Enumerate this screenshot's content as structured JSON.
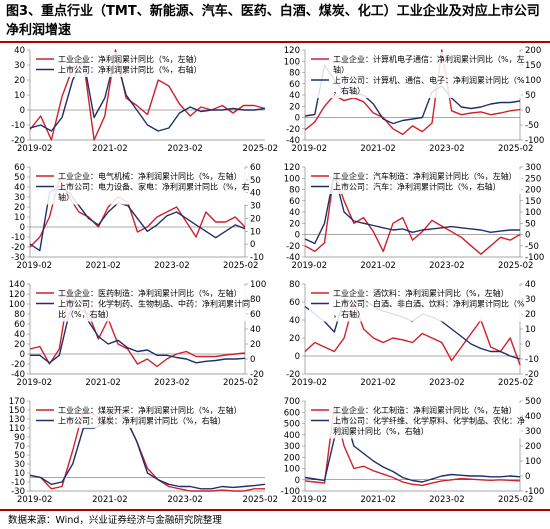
{
  "figure": {
    "title": "图3、重点行业（TMT、新能源、汽车、医药、白酒、煤炭、化工）工业企业及对应上市公司净利润增速",
    "source": "数据来源：Wind，兴业证券经济与金融研究院整理",
    "colors": {
      "industry": "#d0202a",
      "listed": "#1f2f6b",
      "divider": "#b00000"
    }
  },
  "chart_data": [
    {
      "type": "line",
      "title": "",
      "x_ticks": [
        "2019-02",
        "2021-02",
        "2023-02",
        "2025-02"
      ],
      "y_left": {
        "ticks": [
          -20,
          -10,
          0,
          10,
          20,
          30,
          40
        ],
        "lim": [
          -20,
          40
        ]
      },
      "y_right": null,
      "legend": [
        "工业企业：净利润累计同比（%，左轴）",
        "上市公司：净利润累计同比（%，右轴）"
      ],
      "series": [
        {
          "name": "工业企业：净利润累计同比（%，左轴）",
          "color": "#d0202a",
          "axis": "left",
          "values": [
            -13,
            -4,
            -20,
            9,
            28,
            33,
            -20,
            -4,
            40,
            8,
            3,
            -3,
            20,
            16,
            4,
            -4,
            2,
            0,
            3,
            -2,
            3,
            3,
            1
          ]
        },
        {
          "name": "上市公司：净利润累计同比（%，右轴）",
          "color": "#1f2f6b",
          "axis": "left",
          "values": [
            -12,
            -10,
            -14,
            -5,
            20,
            34,
            -5,
            8,
            36,
            10,
            0,
            -10,
            -14,
            -12,
            -2,
            2,
            -1,
            0,
            0,
            1,
            0,
            0,
            1
          ]
        }
      ]
    },
    {
      "type": "line",
      "title": "",
      "x_ticks": [
        "2019-02",
        "2021-02",
        "2023-02",
        "2025-02"
      ],
      "y_left": {
        "ticks": [
          -40,
          -20,
          0,
          20,
          40,
          60,
          80,
          100,
          120
        ],
        "lim": [
          -40,
          120
        ]
      },
      "y_right": {
        "ticks": [
          -100,
          -50,
          0,
          50,
          100,
          150,
          200
        ],
        "lim": [
          -100,
          200
        ]
      },
      "legend": [
        "工业企业：计算机电子通信：净利润累计同比（%，左轴）",
        "上市公司：计算机、通信、电子：净利润累计同比（%，右轴）"
      ],
      "series": [
        {
          "name": "工业企业：计算机电子通信：净利润累计同比（%，左轴）",
          "color": "#d0202a",
          "axis": "left",
          "values": [
            -22,
            -8,
            20,
            40,
            30,
            35,
            28,
            8,
            0,
            -20,
            -30,
            -15,
            -25,
            -10,
            120,
            12,
            5,
            8,
            10,
            5,
            8,
            12,
            14
          ]
        },
        {
          "name": "上市公司：计算机、通信、电子：净利润累计同比（%，右轴）",
          "color": "#1f2f6b",
          "axis": "right",
          "values": [
            -20,
            -15,
            150,
            100,
            60,
            55,
            50,
            20,
            -30,
            -45,
            -35,
            -30,
            -25,
            60,
            80,
            40,
            10,
            5,
            10,
            20,
            25,
            25,
            30
          ]
        }
      ]
    },
    {
      "type": "line",
      "title": "",
      "x_ticks": [
        "2019-02",
        "2021-02",
        "2023-02",
        "2025-02"
      ],
      "y_left": {
        "ticks": [
          -30,
          -20,
          -10,
          0,
          10,
          20,
          30,
          40,
          50,
          60
        ],
        "lim": [
          -30,
          60
        ]
      },
      "y_right": {
        "ticks": [
          -10,
          0,
          10,
          20,
          30,
          40,
          50,
          60
        ],
        "lim": [
          -10,
          60
        ]
      },
      "legend": [
        "工业企业：电气机械：净利润累计同比（%，左轴）",
        "上市公司：电力设备、家电：净利润累计同比（%，右轴）"
      ],
      "series": [
        {
          "name": "工业企业：电气机械：净利润累计同比（%，左轴）",
          "color": "#d0202a",
          "axis": "left",
          "values": [
            -20,
            -10,
            10,
            48,
            30,
            15,
            10,
            0,
            20,
            30,
            25,
            -5,
            0,
            10,
            15,
            20,
            5,
            -10,
            15,
            5,
            5,
            10,
            0
          ]
        },
        {
          "name": "上市公司：电力设备、家电：净利润累计同比（%，右轴）",
          "color": "#1f2f6b",
          "axis": "right",
          "values": [
            0,
            -5,
            40,
            45,
            40,
            30,
            20,
            15,
            25,
            32,
            30,
            20,
            10,
            15,
            22,
            25,
            20,
            15,
            10,
            5,
            10,
            15,
            12
          ]
        }
      ]
    },
    {
      "type": "line",
      "title": "",
      "x_ticks": [
        "2019-02",
        "2021-02",
        "2023-02",
        "2025-02"
      ],
      "y_left": {
        "ticks": [
          -40,
          -20,
          0,
          20,
          40,
          60,
          80,
          100,
          120
        ],
        "lim": [
          -40,
          120
        ]
      },
      "y_right": {
        "ticks": [
          -100,
          -50,
          0,
          50,
          100,
          150,
          200,
          250,
          300
        ],
        "lim": [
          -100,
          300
        ]
      },
      "legend": [
        "工业企业：汽车制造：净利润累计同比（%，左轴）",
        "上市公司：汽车：净利润累计同比（%，右轴）"
      ],
      "series": [
        {
          "name": "工业企业：汽车制造：净利润累计同比（%，左轴）",
          "color": "#d0202a",
          "axis": "left",
          "values": [
            -20,
            -30,
            -15,
            110,
            60,
            20,
            30,
            5,
            -30,
            20,
            30,
            -10,
            5,
            25,
            15,
            5,
            -5,
            -20,
            -35,
            -20,
            -5,
            -10,
            0
          ]
        },
        {
          "name": "上市公司：汽车：净利润累计同比（%，右轴）",
          "color": "#1f2f6b",
          "axis": "right",
          "values": [
            -20,
            -40,
            50,
            270,
            100,
            60,
            50,
            40,
            30,
            20,
            25,
            10,
            20,
            25,
            30,
            35,
            30,
            25,
            20,
            10,
            15,
            20,
            20
          ]
        }
      ]
    },
    {
      "type": "line",
      "title": "",
      "x_ticks": [
        "2019-02",
        "2021-02",
        "2023-02",
        "2025-02"
      ],
      "y_left": {
        "ticks": [
          -40,
          -20,
          0,
          20,
          40,
          60,
          80,
          100,
          120,
          140
        ],
        "lim": [
          -40,
          140
        ]
      },
      "y_right": {
        "ticks": [
          -20,
          0,
          20,
          40,
          60,
          80,
          100
        ],
        "lim": [
          -20,
          100
        ]
      },
      "legend": [
        "工业企业：医药制造：净利润累计同比（%，左轴）",
        "上市公司：化学制药、生物制品、中药：净利润累计同比（%，右轴）"
      ],
      "series": [
        {
          "name": "工业企业：医药制造：净利润累计同比（%，左轴）",
          "color": "#d0202a",
          "axis": "left",
          "values": [
            10,
            15,
            -20,
            10,
            130,
            90,
            80,
            30,
            70,
            20,
            10,
            -20,
            -10,
            -25,
            -10,
            0,
            5,
            -5,
            -5,
            -5,
            -2,
            0,
            2
          ]
        },
        {
          "name": "上市公司：化学制药、生物制品、中药：净利润累计同比（%，右轴）",
          "color": "#1f2f6b",
          "axis": "right",
          "values": [
            5,
            5,
            -5,
            5,
            60,
            92,
            50,
            30,
            20,
            25,
            15,
            10,
            12,
            5,
            5,
            2,
            0,
            -5,
            -3,
            -2,
            0,
            0,
            1
          ]
        }
      ]
    },
    {
      "type": "line",
      "title": "",
      "x_ticks": [
        "2019-02",
        "2021-02",
        "2023-02",
        "2025-02"
      ],
      "y_left": {
        "ticks": [
          -20,
          0,
          20,
          40,
          60,
          80
        ],
        "lim": [
          -20,
          80
        ]
      },
      "y_right": {
        "ticks": [
          -20,
          -10,
          0,
          10,
          20,
          30,
          40
        ],
        "lim": [
          -20,
          40
        ]
      },
      "legend": [
        "工业企业：酒饮料：净利润累计同比（%，左轴）",
        "上市公司：白酒、非白酒、饮料：净利润累计同比（%，右轴）"
      ],
      "series": [
        {
          "name": "工业企业：酒饮料：净利润累计同比（%，左轴）",
          "color": "#d0202a",
          "axis": "left",
          "values": [
            5,
            15,
            10,
            5,
            20,
            60,
            30,
            20,
            15,
            20,
            18,
            15,
            25,
            20,
            15,
            -5,
            10,
            25,
            40,
            10,
            5,
            20,
            -10
          ]
        },
        {
          "name": "上市公司：白酒、非白酒、饮料：净利润累计同比（%，右轴）",
          "color": "#1f2f6b",
          "axis": "right",
          "values": [
            25,
            20,
            15,
            8,
            30,
            28,
            30,
            25,
            22,
            20,
            18,
            15,
            20,
            18,
            15,
            10,
            5,
            0,
            -3,
            -5,
            -5,
            -8,
            -10
          ]
        }
      ]
    },
    {
      "type": "line",
      "title": "",
      "x_ticks": [
        "2019-02",
        "2021-02",
        "2023-02",
        "2025-02"
      ],
      "y_left": {
        "ticks": [
          -30,
          -10,
          10,
          30,
          50,
          70,
          90,
          110,
          130,
          150,
          170
        ],
        "lim": [
          -30,
          170
        ]
      },
      "y_right": null,
      "legend": [
        "工业企业：煤炭开采：净利润累计同比（%，左轴）",
        "上市公司：煤炭：净利润累计同比（%，右轴）"
      ],
      "series": [
        {
          "name": "工业企业：煤炭开采：净利润累计同比（%，左轴）",
          "color": "#d0202a",
          "axis": "left",
          "values": [
            5,
            0,
            -25,
            -20,
            60,
            150,
            140,
            120,
            150,
            130,
            80,
            20,
            -5,
            -20,
            -25,
            -30,
            -30,
            -30,
            -28,
            -30,
            -30,
            -25,
            -25
          ]
        },
        {
          "name": "上市公司：煤炭：净利润累计同比（%，右轴）",
          "color": "#1f2f6b",
          "axis": "left",
          "values": [
            5,
            0,
            -15,
            -10,
            30,
            110,
            110,
            120,
            160,
            130,
            80,
            10,
            -5,
            -15,
            -20,
            -20,
            -25,
            -25,
            -20,
            -22,
            -20,
            -18,
            -15
          ]
        }
      ]
    },
    {
      "type": "line",
      "title": "",
      "x_ticks": [
        "2019-02",
        "2021-02",
        "2023-02",
        "2025-02"
      ],
      "y_left": {
        "ticks": [
          -100,
          0,
          100,
          200,
          300,
          400,
          500,
          600,
          700
        ],
        "lim": [
          -100,
          700
        ]
      },
      "y_right": {
        "ticks": [
          -100,
          0,
          100,
          200,
          300,
          400,
          500
        ],
        "lim": [
          -100,
          500
        ]
      },
      "legend": [
        "工业企业：化工制造：净利润累计同比（%，左轴）",
        "上市公司：化学纤维、化学原料、化学制品、农化：净利润累计同比（%，右轴）"
      ],
      "series": [
        {
          "name": "工业企业：化工制造：净利润累计同比（%，左轴）",
          "color": "#d0202a",
          "axis": "left",
          "values": [
            -10,
            -20,
            -30,
            650,
            300,
            100,
            120,
            80,
            50,
            20,
            -20,
            -40,
            -50,
            -30,
            -10,
            0,
            10,
            5,
            0,
            -5,
            0,
            -5,
            -10
          ]
        },
        {
          "name": "上市公司：化学纤维、化学原料、化学制品、农化：净利润累计同比（%，右轴）",
          "color": "#1f2f6b",
          "axis": "right",
          "values": [
            -10,
            -20,
            -30,
            250,
            420,
            200,
            150,
            100,
            60,
            30,
            -10,
            -30,
            -40,
            -20,
            0,
            10,
            5,
            0,
            0,
            -5,
            -5,
            0,
            -5
          ]
        }
      ]
    }
  ]
}
